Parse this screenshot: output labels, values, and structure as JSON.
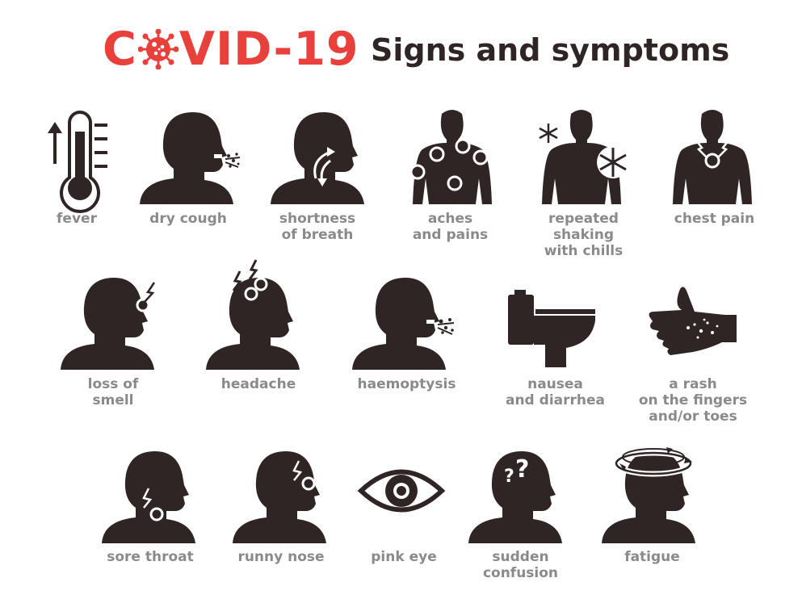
{
  "header": {
    "brand": "COVID-19",
    "brand_prefix": "C",
    "brand_suffix": "VID-19",
    "title": "Signs and symptoms",
    "brand_color": "#e8403a",
    "text_color": "#2e2524",
    "label_color": "#8c8a89"
  },
  "symptoms": [
    {
      "label": "fever",
      "icon": "thermometer-icon"
    },
    {
      "label": "dry cough",
      "icon": "head-cough-icon"
    },
    {
      "label": "shortness\nof breath",
      "icon": "head-breath-icon"
    },
    {
      "label": "aches\nand pains",
      "icon": "torso-aches-icon"
    },
    {
      "label": "repeated\nshaking\nwith chills",
      "icon": "torso-snowflake-icon"
    },
    {
      "label": "chest pain",
      "icon": "torso-chest-pain-icon"
    },
    {
      "label": "loss of\nsmell",
      "icon": "head-nose-icon"
    },
    {
      "label": "headache",
      "icon": "head-lightning-icon"
    },
    {
      "label": "haemoptysis",
      "icon": "head-cough-blood-icon"
    },
    {
      "label": "nausea\nand diarrhea",
      "icon": "toilet-icon"
    },
    {
      "label": "a rash\non the fingers\nand/or toes",
      "icon": "hand-rash-icon"
    },
    {
      "label": "sore throat",
      "icon": "head-throat-icon"
    },
    {
      "label": "runny nose",
      "icon": "head-runny-nose-icon"
    },
    {
      "label": "pink eye",
      "icon": "eye-icon"
    },
    {
      "label": "sudden\nconfusion",
      "icon": "head-question-icon"
    },
    {
      "label": "fatigue",
      "icon": "head-dizzy-icon"
    }
  ]
}
